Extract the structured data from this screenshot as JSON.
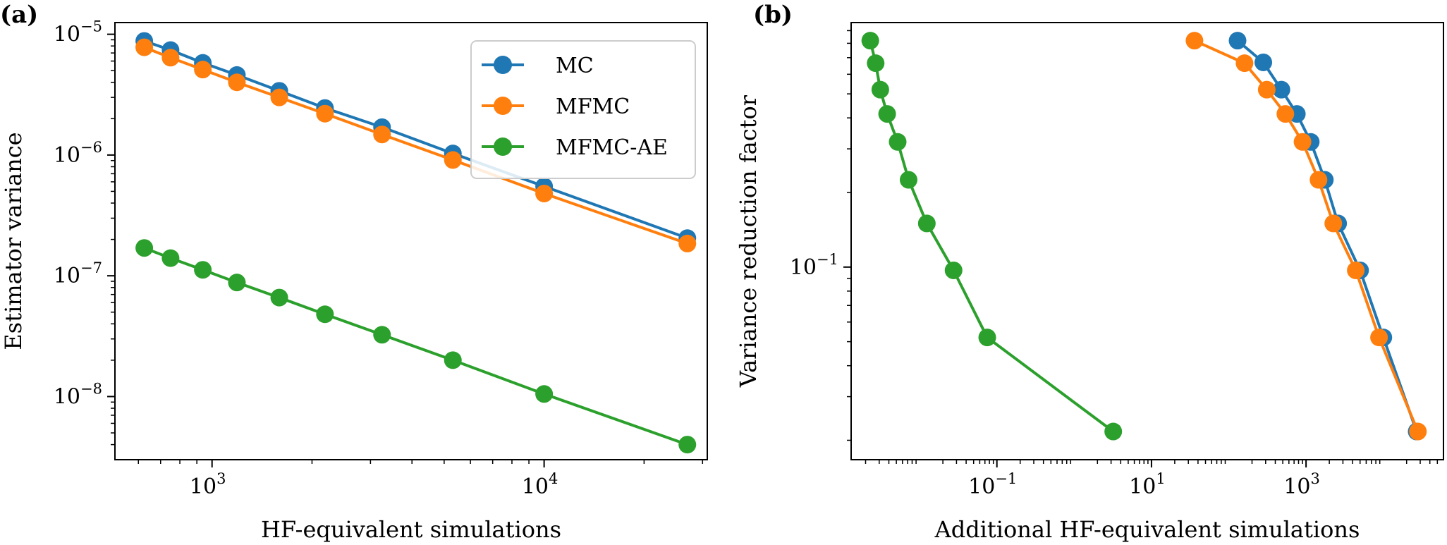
{
  "colors": {
    "MC": "#1f77b4",
    "MFMC": "#ff7f0e",
    "MFMC-AE": "#2ca02c",
    "axis": "#000000"
  },
  "chart_data": [
    {
      "panel": "(a)",
      "type": "line",
      "title": "",
      "xlabel": "HF-equivalent simulations",
      "ylabel": "Estimator variance",
      "xscale": "log",
      "yscale": "log",
      "xlim": [
        510,
        31000
      ],
      "ylim": [
        3e-09,
        1.25e-05
      ],
      "xticks": [
        {
          "base": "10",
          "exp": "3",
          "value": 1000
        },
        {
          "base": "10",
          "exp": "4",
          "value": 10000
        }
      ],
      "yticks": [
        {
          "base": "10",
          "exp": "−5",
          "value": 1e-05
        },
        {
          "base": "10",
          "exp": "−6",
          "value": 1e-06
        },
        {
          "base": "10",
          "exp": "−7",
          "value": 1e-07
        },
        {
          "base": "10",
          "exp": "−8",
          "value": 1e-08
        }
      ],
      "legend": {
        "placement": "top-right",
        "entries": [
          "MC",
          "MFMC",
          "MFMC-AE"
        ]
      },
      "series": [
        {
          "name": "MC",
          "x": [
            625,
            750,
            938,
            1188,
            1594,
            2188,
            3250,
            5312,
            10000,
            27000
          ],
          "y": [
            8.8e-06,
            7.4e-06,
            5.8e-06,
            4.6e-06,
            3.4e-06,
            2.45e-06,
            1.7e-06,
            1.03e-06,
            5.5e-07,
            2.05e-07
          ]
        },
        {
          "name": "MFMC",
          "x": [
            625,
            750,
            938,
            1188,
            1594,
            2188,
            3250,
            5312,
            10000,
            27000
          ],
          "y": [
            7.8e-06,
            6.4e-06,
            5.1e-06,
            4e-06,
            3e-06,
            2.2e-06,
            1.48e-06,
            9.1e-07,
            4.8e-07,
            1.85e-07
          ]
        },
        {
          "name": "MFMC-AE",
          "x": [
            625,
            750,
            938,
            1188,
            1594,
            2188,
            3250,
            5312,
            10000,
            27000
          ],
          "y": [
            1.7e-07,
            1.4e-07,
            1.12e-07,
            8.8e-08,
            6.6e-08,
            4.8e-08,
            3.25e-08,
            2e-08,
            1.05e-08,
            4e-09
          ]
        }
      ]
    },
    {
      "panel": "(b)",
      "type": "line",
      "title": "",
      "xlabel": "Additional HF-equivalent simulations",
      "ylabel": "Variance reduction factor",
      "xscale": "log",
      "yscale": "log",
      "xlim": [
        0.0013,
        60000
      ],
      "ylim": [
        0.0167,
        0.97
      ],
      "xticks": [
        {
          "base": "10",
          "exp": "−1",
          "value": 0.1
        },
        {
          "base": "10",
          "exp": "1",
          "value": 10
        },
        {
          "base": "10",
          "exp": "3",
          "value": 1000
        }
      ],
      "yticks": [
        {
          "base": "10",
          "exp": "−1",
          "value": 0.1
        }
      ],
      "series": [
        {
          "name": "MC",
          "x": [
            130,
            280,
            480,
            760,
            1150,
            1750,
            2600,
            5000,
            10000,
            27000
          ],
          "y": [
            0.82,
            0.67,
            0.52,
            0.415,
            0.32,
            0.225,
            0.15,
            0.097,
            0.052,
            0.0217
          ]
        },
        {
          "name": "MFMC",
          "x": [
            36,
            160,
            310,
            540,
            900,
            1450,
            2250,
            4400,
            8800,
            28000
          ],
          "y": [
            0.82,
            0.665,
            0.52,
            0.415,
            0.32,
            0.225,
            0.15,
            0.097,
            0.052,
            0.0217
          ]
        },
        {
          "name": "MFMC-AE",
          "x": [
            0.0023,
            0.0027,
            0.0031,
            0.0038,
            0.0052,
            0.0072,
            0.0124,
            0.0275,
            0.075,
            3.2
          ],
          "y": [
            0.82,
            0.665,
            0.52,
            0.415,
            0.32,
            0.225,
            0.15,
            0.097,
            0.052,
            0.0217
          ]
        }
      ]
    }
  ]
}
